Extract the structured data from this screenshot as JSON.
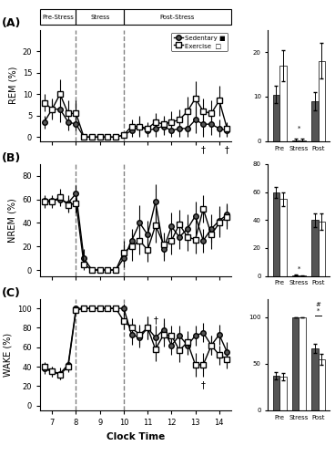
{
  "chart_data": [
    {
      "type": "line",
      "title": "(A)",
      "phases": [
        {
          "label": "Pre-Stress",
          "start": 6.5,
          "end": 8.0
        },
        {
          "label": "Stress",
          "start": 8.0,
          "end": 10.0
        },
        {
          "label": "Post-Stress",
          "start": 10.0,
          "end": 14.5
        }
      ],
      "x": [
        6.67,
        7,
        7.33,
        7.67,
        8,
        8.33,
        8.67,
        9,
        9.33,
        9.67,
        10,
        10.33,
        10.67,
        11,
        11.33,
        11.67,
        12,
        12.33,
        12.67,
        13,
        13.33,
        13.67,
        14,
        14.33
      ],
      "xlim": [
        6.5,
        14.5
      ],
      "xticks": [
        7,
        8,
        9,
        10,
        11,
        12,
        13,
        14
      ],
      "tick_labels": "y",
      "y_label": "REM (%)",
      "ylim": [
        -1,
        25
      ],
      "yticks": [
        0,
        5,
        10,
        15,
        20
      ],
      "vlines": [
        8.0,
        10.0
      ],
      "legend": "upper right",
      "series": [
        {
          "name": "Sedentary ■",
          "color": "#555555",
          "marker": "o",
          "values": [
            3.5,
            6.5,
            6.5,
            3.5,
            3.0,
            0.0,
            0.0,
            0.0,
            0.0,
            0.0,
            0.5,
            1.5,
            2.5,
            1.5,
            2.0,
            2.5,
            1.5,
            2.0,
            2.0,
            4.0,
            3.0,
            3.0,
            2.0,
            1.5
          ],
          "errors": [
            1.5,
            2.0,
            3.0,
            2.0,
            1.5,
            0.0,
            0.0,
            0.0,
            0.0,
            0.5,
            0.5,
            1.5,
            2.5,
            1.5,
            2.0,
            2.0,
            1.5,
            2.0,
            2.0,
            3.0,
            3.0,
            2.5,
            2.0,
            1.5
          ]
        },
        {
          "name": "Exercise  □",
          "color": "white",
          "marker": "s",
          "values": [
            8.0,
            6.5,
            10.0,
            5.5,
            5.5,
            0.0,
            0.0,
            0.0,
            0.0,
            0.0,
            0.5,
            2.5,
            2.5,
            2.0,
            3.5,
            3.0,
            3.5,
            4.0,
            6.0,
            9.0,
            6.0,
            5.5,
            8.5,
            2.0
          ],
          "errors": [
            2.0,
            2.5,
            3.5,
            3.0,
            3.0,
            0.0,
            0.0,
            0.0,
            0.0,
            0.5,
            0.5,
            1.5,
            2.0,
            1.5,
            2.0,
            2.0,
            2.5,
            2.5,
            3.5,
            4.0,
            3.0,
            3.0,
            3.5,
            1.5
          ]
        }
      ],
      "annotations": [
        {
          "text": "†",
          "x": 13.33,
          "y": -3.5
        },
        {
          "text": "†",
          "x": 14.33,
          "y": -3.5
        }
      ]
    },
    {
      "type": "bar",
      "categories": [
        "Pre",
        "Stress",
        "Post"
      ],
      "ylim": [
        0,
        25
      ],
      "yticks": [
        0,
        10,
        20
      ],
      "series": [
        {
          "name": "Sedentary ■",
          "color": "#555555",
          "values": [
            10.5,
            0.3,
            9.0
          ],
          "errors": [
            2.0,
            0.3,
            2.0
          ]
        },
        {
          "name": "Exercise  □",
          "color": "white",
          "values": [
            17.0,
            0.3,
            18.0
          ],
          "errors": [
            3.5,
            0.3,
            4.0
          ]
        }
      ],
      "annotations": [
        {
          "text": "*",
          "category": "Stress",
          "y": 2.5
        }
      ]
    },
    {
      "type": "line",
      "title": "(B)",
      "x": [
        6.67,
        7,
        7.33,
        7.67,
        8,
        8.33,
        8.67,
        9,
        9.33,
        9.67,
        10,
        10.33,
        10.67,
        11,
        11.33,
        11.67,
        12,
        12.33,
        12.67,
        13,
        13.33,
        13.67,
        14,
        14.33
      ],
      "xlim": [
        6.5,
        14.5
      ],
      "xticks": [
        7,
        8,
        9,
        10,
        11,
        12,
        13,
        14
      ],
      "tick_labels": "y",
      "y_label": "NREM (%)",
      "ylim": [
        -5,
        90
      ],
      "yticks": [
        0,
        20,
        40,
        60,
        80
      ],
      "vlines": [
        8.0,
        10.0
      ],
      "series": [
        {
          "name": "Sedentary ■",
          "color": "#555555",
          "marker": "o",
          "values": [
            59,
            59,
            60,
            57,
            65,
            10,
            0,
            0,
            0,
            0,
            10,
            25,
            40,
            30,
            58,
            18,
            37,
            28,
            35,
            46,
            25,
            35,
            42,
            47
          ],
          "errors": [
            5,
            5,
            6,
            7,
            7,
            8,
            0,
            0,
            0,
            0,
            8,
            10,
            15,
            12,
            15,
            10,
            12,
            10,
            12,
            12,
            10,
            12,
            12,
            10
          ]
        },
        {
          "name": "Exercise  □",
          "color": "white",
          "marker": "s",
          "values": [
            58,
            58,
            62,
            55,
            57,
            5,
            0,
            0,
            0,
            0,
            15,
            20,
            25,
            17,
            38,
            22,
            25,
            39,
            28,
            26,
            52,
            30,
            40,
            45
          ],
          "errors": [
            5,
            5,
            7,
            6,
            8,
            5,
            0,
            0,
            0,
            0,
            10,
            12,
            12,
            10,
            15,
            10,
            12,
            12,
            12,
            12,
            12,
            12,
            12,
            10
          ]
        }
      ]
    },
    {
      "type": "bar",
      "categories": [
        "Pre",
        "Stress",
        "Post"
      ],
      "ylim": [
        0,
        80
      ],
      "yticks": [
        0,
        20,
        40,
        60,
        80
      ],
      "series": [
        {
          "name": "Sedentary ■",
          "color": "#555555",
          "values": [
            60,
            0.5,
            40
          ],
          "errors": [
            4,
            0.3,
            5
          ]
        },
        {
          "name": "Exercise  □",
          "color": "white",
          "values": [
            55,
            0.3,
            39
          ],
          "errors": [
            5,
            0.3,
            6
          ]
        }
      ],
      "annotations": [
        {
          "text": "*",
          "category": "Stress",
          "y": 4.0
        }
      ]
    },
    {
      "type": "line",
      "title": "(C)",
      "x": [
        6.67,
        7,
        7.33,
        7.67,
        8,
        8.33,
        8.67,
        9,
        9.33,
        9.67,
        10,
        10.33,
        10.67,
        11,
        11.33,
        11.67,
        12,
        12.33,
        12.67,
        13,
        13.33,
        13.67,
        14,
        14.33
      ],
      "xlim": [
        6.5,
        14.5
      ],
      "xticks": [
        7,
        8,
        9,
        10,
        11,
        12,
        13,
        14
      ],
      "x_label": "Clock Time",
      "y_label": "WAKE (%)",
      "ylim": [
        -5,
        110
      ],
      "yticks": [
        0,
        20,
        40,
        60,
        80,
        100
      ],
      "vlines": [
        8.0,
        10.0
      ],
      "series": [
        {
          "name": "Sedentary ■",
          "color": "#555555",
          "marker": "o",
          "values": [
            38,
            35,
            33,
            42,
            100,
            100,
            100,
            100,
            100,
            100,
            100,
            73,
            70,
            80,
            70,
            78,
            62,
            72,
            62,
            72,
            75,
            62,
            73,
            55
          ],
          "errors": [
            5,
            5,
            6,
            6,
            0,
            0,
            0,
            0,
            0,
            0,
            5,
            10,
            10,
            12,
            12,
            12,
            10,
            10,
            10,
            10,
            10,
            10,
            10,
            10
          ]
        },
        {
          "name": "Exercise  □",
          "color": "white",
          "marker": "s",
          "values": [
            40,
            35,
            32,
            40,
            98,
            100,
            100,
            100,
            100,
            100,
            87,
            80,
            73,
            80,
            58,
            73,
            72,
            57,
            65,
            42,
            42,
            62,
            52,
            48
          ],
          "errors": [
            5,
            5,
            5,
            6,
            2,
            0,
            0,
            0,
            0,
            0,
            8,
            10,
            10,
            12,
            12,
            12,
            10,
            12,
            12,
            12,
            12,
            10,
            10,
            10
          ]
        }
      ],
      "annotations": [
        {
          "text": "†",
          "x": 11.33,
          "y": 85
        },
        {
          "text": "†",
          "x": 13.33,
          "y": 18
        }
      ]
    },
    {
      "type": "bar",
      "categories": [
        "Pre",
        "Stress",
        "Post"
      ],
      "ylim": [
        0,
        120
      ],
      "yticks": [
        0,
        50,
        100
      ],
      "series": [
        {
          "name": "Sedentary ■",
          "color": "#555555",
          "values": [
            37,
            100,
            67
          ],
          "errors": [
            4,
            0,
            5
          ]
        },
        {
          "name": "Exercise  □",
          "color": "white",
          "values": [
            36,
            100,
            55
          ],
          "errors": [
            4,
            0,
            6
          ]
        }
      ],
      "annotations": [
        {
          "text": "*",
          "category": "Post",
          "y": 105
        },
        {
          "text": "#",
          "category": "Post",
          "y": 112
        }
      ],
      "brackets": [
        {
          "category": "Post",
          "y": 102
        }
      ]
    }
  ]
}
